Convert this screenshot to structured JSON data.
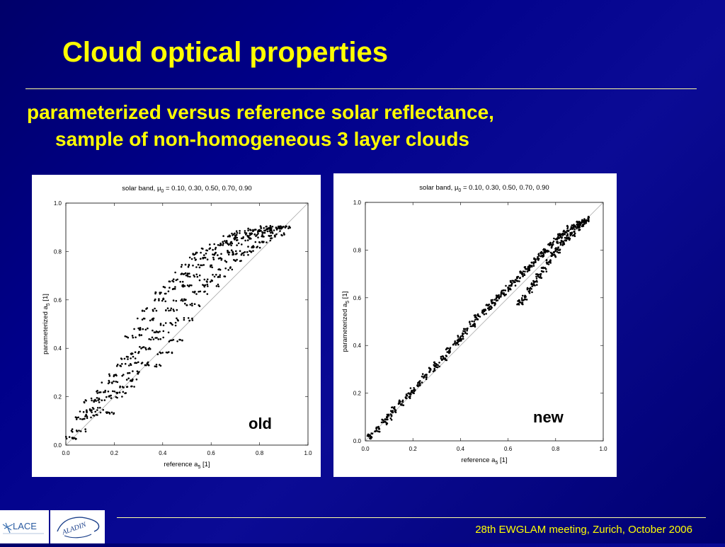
{
  "slide": {
    "title": "Cloud optical properties",
    "subtitle_line1": "parameterized versus reference solar reflectance,",
    "subtitle_line2": "sample of non-homogeneous 3 layer clouds",
    "footer": "28th EWGLAM meeting, Zurich, October 2006",
    "logo1_text": "LACE",
    "logo2_text": "ALADIN",
    "title_color": "#ffff00"
  },
  "chart_data": [
    {
      "type": "scatter",
      "panel_label": "old",
      "title_prefix": "solar band, ",
      "title_mu": "μ",
      "title_sub": "0",
      "title_values": " = 0.10, 0.30, 0.50, 0.70, 0.90",
      "xlabel_main": "reference a",
      "xlabel_sub": "5",
      "xlabel_unit": " [1]",
      "ylabel_main": "parameterized a",
      "ylabel_sub": "5",
      "ylabel_unit": " [1]",
      "xlim": [
        0,
        1
      ],
      "ylim": [
        0,
        1
      ],
      "xticks": [
        "0.0",
        "0.2",
        "0.4",
        "0.6",
        "0.8",
        "1.0"
      ],
      "yticks": [
        "0.0",
        "0.2",
        "0.4",
        "0.6",
        "0.8",
        "1.0"
      ],
      "reference_line": "1:1 diagonal",
      "sample_points": [
        [
          0.03,
          0.03
        ],
        [
          0.05,
          0.06
        ],
        [
          0.07,
          0.11
        ],
        [
          0.09,
          0.14
        ],
        [
          0.1,
          0.12
        ],
        [
          0.11,
          0.18
        ],
        [
          0.13,
          0.15
        ],
        [
          0.14,
          0.19
        ],
        [
          0.16,
          0.22
        ],
        [
          0.17,
          0.13
        ],
        [
          0.18,
          0.26
        ],
        [
          0.2,
          0.2
        ],
        [
          0.21,
          0.29
        ],
        [
          0.22,
          0.22
        ],
        [
          0.24,
          0.33
        ],
        [
          0.25,
          0.24
        ],
        [
          0.26,
          0.36
        ],
        [
          0.27,
          0.27
        ],
        [
          0.28,
          0.45
        ],
        [
          0.29,
          0.3
        ],
        [
          0.3,
          0.38
        ],
        [
          0.31,
          0.48
        ],
        [
          0.32,
          0.34
        ],
        [
          0.33,
          0.52
        ],
        [
          0.34,
          0.4
        ],
        [
          0.35,
          0.56
        ],
        [
          0.36,
          0.33
        ],
        [
          0.37,
          0.44
        ],
        [
          0.38,
          0.6
        ],
        [
          0.39,
          0.47
        ],
        [
          0.4,
          0.63
        ],
        [
          0.41,
          0.38
        ],
        [
          0.42,
          0.5
        ],
        [
          0.43,
          0.65
        ],
        [
          0.44,
          0.56
        ],
        [
          0.45,
          0.68
        ],
        [
          0.46,
          0.43
        ],
        [
          0.47,
          0.6
        ],
        [
          0.48,
          0.71
        ],
        [
          0.49,
          0.52
        ],
        [
          0.5,
          0.66
        ],
        [
          0.51,
          0.74
        ],
        [
          0.52,
          0.58
        ],
        [
          0.53,
          0.7
        ],
        [
          0.54,
          0.77
        ],
        [
          0.55,
          0.63
        ],
        [
          0.56,
          0.79
        ],
        [
          0.57,
          0.68
        ],
        [
          0.58,
          0.74
        ],
        [
          0.59,
          0.81
        ],
        [
          0.6,
          0.66
        ],
        [
          0.61,
          0.77
        ],
        [
          0.62,
          0.83
        ],
        [
          0.63,
          0.7
        ],
        [
          0.64,
          0.79
        ],
        [
          0.65,
          0.84
        ],
        [
          0.66,
          0.73
        ],
        [
          0.67,
          0.8
        ],
        [
          0.68,
          0.86
        ],
        [
          0.69,
          0.76
        ],
        [
          0.7,
          0.83
        ],
        [
          0.71,
          0.87
        ],
        [
          0.72,
          0.79
        ],
        [
          0.73,
          0.85
        ],
        [
          0.74,
          0.88
        ],
        [
          0.75,
          0.8
        ],
        [
          0.76,
          0.86
        ],
        [
          0.77,
          0.89
        ],
        [
          0.78,
          0.82
        ],
        [
          0.79,
          0.87
        ],
        [
          0.8,
          0.89
        ],
        [
          0.81,
          0.84
        ],
        [
          0.82,
          0.88
        ],
        [
          0.83,
          0.9
        ],
        [
          0.84,
          0.86
        ],
        [
          0.85,
          0.89
        ],
        [
          0.86,
          0.9
        ],
        [
          0.87,
          0.87
        ],
        [
          0.88,
          0.9
        ],
        [
          0.9,
          0.9
        ]
      ]
    },
    {
      "type": "scatter",
      "panel_label": "new",
      "title_prefix": "solar band, ",
      "title_mu": "μ",
      "title_sub": "0",
      "title_values": " = 0.10, 0.30, 0.50, 0.70, 0.90",
      "xlabel_main": "reference a",
      "xlabel_sub": "5",
      "xlabel_unit": " [1]",
      "ylabel_main": "parameterized a",
      "ylabel_sub": "5",
      "ylabel_unit": " [1]",
      "xlim": [
        0,
        1
      ],
      "ylim": [
        0,
        1
      ],
      "xticks": [
        "0.0",
        "0.2",
        "0.4",
        "0.6",
        "0.8",
        "1.0"
      ],
      "yticks": [
        "0.0",
        "0.2",
        "0.4",
        "0.6",
        "0.8",
        "1.0"
      ],
      "reference_line": "1:1 diagonal",
      "sample_points": [
        [
          0.02,
          0.02
        ],
        [
          0.05,
          0.05
        ],
        [
          0.08,
          0.08
        ],
        [
          0.1,
          0.1
        ],
        [
          0.12,
          0.13
        ],
        [
          0.15,
          0.16
        ],
        [
          0.18,
          0.19
        ],
        [
          0.2,
          0.21
        ],
        [
          0.23,
          0.24
        ],
        [
          0.25,
          0.27
        ],
        [
          0.28,
          0.3
        ],
        [
          0.3,
          0.32
        ],
        [
          0.33,
          0.35
        ],
        [
          0.35,
          0.38
        ],
        [
          0.38,
          0.41
        ],
        [
          0.4,
          0.43
        ],
        [
          0.42,
          0.46
        ],
        [
          0.45,
          0.49
        ],
        [
          0.47,
          0.52
        ],
        [
          0.5,
          0.54
        ],
        [
          0.52,
          0.56
        ],
        [
          0.54,
          0.58
        ],
        [
          0.56,
          0.6
        ],
        [
          0.58,
          0.62
        ],
        [
          0.6,
          0.64
        ],
        [
          0.62,
          0.66
        ],
        [
          0.64,
          0.68
        ],
        [
          0.65,
          0.58
        ],
        [
          0.66,
          0.7
        ],
        [
          0.67,
          0.6
        ],
        [
          0.68,
          0.72
        ],
        [
          0.69,
          0.63
        ],
        [
          0.7,
          0.74
        ],
        [
          0.71,
          0.66
        ],
        [
          0.72,
          0.76
        ],
        [
          0.73,
          0.69
        ],
        [
          0.74,
          0.78
        ],
        [
          0.75,
          0.72
        ],
        [
          0.76,
          0.8
        ],
        [
          0.77,
          0.75
        ],
        [
          0.78,
          0.82
        ],
        [
          0.79,
          0.78
        ],
        [
          0.8,
          0.84
        ],
        [
          0.81,
          0.8
        ],
        [
          0.82,
          0.86
        ],
        [
          0.83,
          0.83
        ],
        [
          0.84,
          0.87
        ],
        [
          0.85,
          0.85
        ],
        [
          0.86,
          0.89
        ],
        [
          0.87,
          0.87
        ],
        [
          0.88,
          0.9
        ],
        [
          0.89,
          0.89
        ],
        [
          0.9,
          0.91
        ],
        [
          0.91,
          0.91
        ],
        [
          0.92,
          0.92
        ],
        [
          0.93,
          0.93
        ]
      ]
    }
  ]
}
